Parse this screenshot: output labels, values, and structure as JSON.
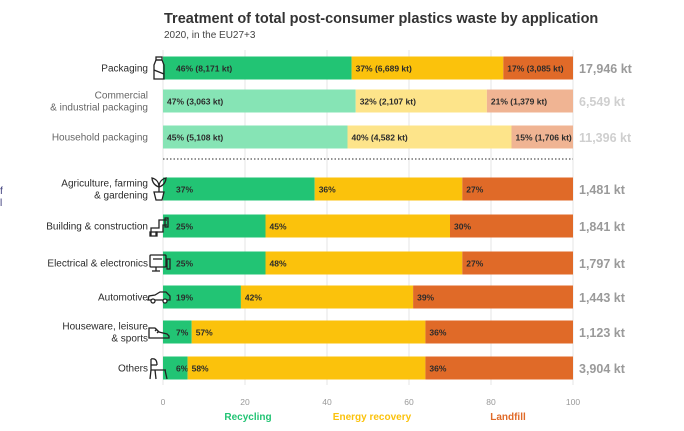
{
  "chart_data": {
    "type": "bar",
    "stacked": true,
    "orientation": "horizontal",
    "title": "Treatment of total post-consumer plastics waste by application",
    "subtitle": "2020, in the EU27+3",
    "xlim": [
      0,
      100
    ],
    "x_ticks": [
      "0",
      "20",
      "40",
      "60",
      "80",
      "100"
    ],
    "series_names": [
      "Recycling",
      "Energy recovery",
      "Landfill"
    ],
    "colors": {
      "recycling": "#22c474",
      "energy": "#fbc20c",
      "landfill": "#e06a28",
      "recycling_light": "#86e4b5",
      "energy_light": "#fde48a",
      "landfill_light": "#f0b493",
      "total_dark": "#9a9a9a",
      "total_light": "#cfcfcf"
    },
    "rows": [
      {
        "label": [
          "Packaging"
        ],
        "icon": "bottle-icon",
        "group": "packaging",
        "values": [
          46,
          37,
          17
        ],
        "labels": [
          "46% (8,171 kt)",
          "37% (6,689 kt)",
          "17% (3,085 kt)"
        ],
        "total": "17,946 kt"
      },
      {
        "label": [
          "Commercial",
          "& industrial packaging"
        ],
        "icon": "",
        "group": "packaging-sub",
        "values": [
          47,
          32,
          21
        ],
        "labels": [
          "47% (3,063 kt)",
          "32% (2,107 kt)",
          "21% (1,379 kt)"
        ],
        "total": "6,549 kt"
      },
      {
        "label": [
          "Household packaging"
        ],
        "icon": "",
        "group": "packaging-sub",
        "values": [
          45,
          40,
          15
        ],
        "labels": [
          "45% (5,108 kt)",
          "40% (4,582 kt)",
          "15% (1,706 kt)"
        ],
        "total": "11,396 kt"
      },
      {
        "label": [
          "Agriculture, farming",
          "& gardening"
        ],
        "icon": "plant-icon",
        "group": "application",
        "values": [
          37,
          36,
          27
        ],
        "labels": [
          "37%",
          "36%",
          "27%"
        ],
        "total": "1,481 kt"
      },
      {
        "label": [
          "Building & construction"
        ],
        "icon": "pipe-icon",
        "group": "application",
        "values": [
          25,
          45,
          30
        ],
        "labels": [
          "25%",
          "45%",
          "30%"
        ],
        "total": "1,841 kt"
      },
      {
        "label": [
          "Electrical & electronics"
        ],
        "icon": "monitor-icon",
        "group": "application",
        "values": [
          25,
          48,
          27
        ],
        "labels": [
          "25%",
          "48%",
          "27%"
        ],
        "total": "1,797 kt"
      },
      {
        "label": [
          "Automotive"
        ],
        "icon": "car-icon",
        "group": "application",
        "values": [
          19,
          42,
          39
        ],
        "labels": [
          "19%",
          "42%",
          "39%"
        ],
        "total": "1,443 kt"
      },
      {
        "label": [
          "Houseware, leisure",
          "& sports"
        ],
        "icon": "sneaker-icon",
        "group": "application",
        "values": [
          7,
          57,
          36
        ],
        "labels": [
          "7%",
          "57%",
          "36%"
        ],
        "total": "1,123 kt"
      },
      {
        "label": [
          "Others"
        ],
        "icon": "chair-icon",
        "group": "application",
        "values": [
          6,
          58,
          36
        ],
        "labels": [
          "6%",
          "58%",
          "36%"
        ],
        "total": "3,904 kt"
      }
    ]
  }
}
